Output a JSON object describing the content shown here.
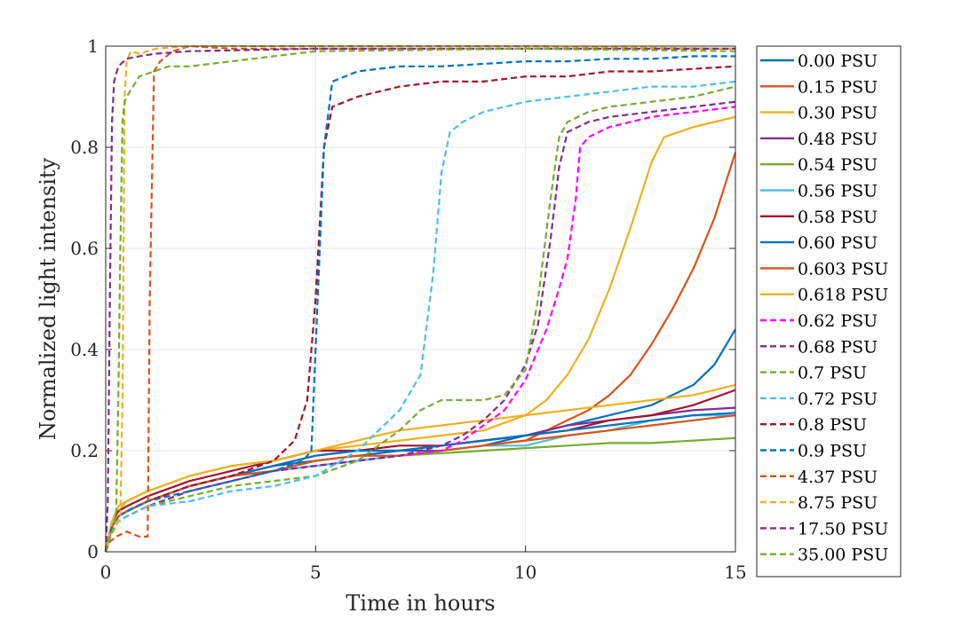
{
  "chart_data": {
    "type": "line",
    "xlabel": "Time in hours",
    "ylabel": "Normalized light intensity",
    "xlim": [
      0,
      15
    ],
    "ylim": [
      0,
      1
    ],
    "xticks": [
      "0",
      "5",
      "10",
      "15"
    ],
    "yticks": [
      "0",
      "0.2",
      "0.4",
      "0.6",
      "0.8",
      "1"
    ],
    "grid": true,
    "legend_position": "outside-right",
    "series": [
      {
        "name": "0.00 PSU",
        "color": "#0072BD",
        "dash": "solid",
        "x": [
          0,
          0.15,
          0.3,
          0.5,
          1,
          2,
          3,
          4,
          5,
          6,
          7,
          8,
          9,
          10,
          11,
          12,
          13,
          13.5,
          14,
          14.5,
          15
        ],
        "y": [
          0,
          0.05,
          0.07,
          0.08,
          0.1,
          0.13,
          0.15,
          0.17,
          0.18,
          0.19,
          0.2,
          0.2,
          0.21,
          0.23,
          0.25,
          0.27,
          0.29,
          0.31,
          0.33,
          0.37,
          0.44
        ]
      },
      {
        "name": "0.15 PSU",
        "color": "#D95319",
        "dash": "solid",
        "x": [
          0,
          0.15,
          0.3,
          0.5,
          1,
          2,
          3,
          4,
          5,
          6,
          7,
          8,
          9,
          10,
          11,
          11.5,
          12,
          12.5,
          13,
          13.5,
          14,
          14.5,
          15
        ],
        "y": [
          0,
          0.05,
          0.07,
          0.08,
          0.1,
          0.13,
          0.15,
          0.16,
          0.18,
          0.19,
          0.19,
          0.2,
          0.21,
          0.22,
          0.26,
          0.28,
          0.31,
          0.35,
          0.41,
          0.48,
          0.56,
          0.66,
          0.79
        ]
      },
      {
        "name": "0.30 PSU",
        "color": "#EDB120",
        "dash": "solid",
        "x": [
          0,
          0.15,
          0.3,
          0.5,
          1,
          2,
          3,
          4,
          5,
          6,
          7,
          8,
          9,
          10,
          10.5,
          11,
          11.5,
          12,
          12.5,
          13,
          13.3,
          14,
          14.5,
          15
        ],
        "y": [
          0,
          0.06,
          0.08,
          0.1,
          0.12,
          0.15,
          0.17,
          0.18,
          0.2,
          0.21,
          0.22,
          0.23,
          0.24,
          0.27,
          0.3,
          0.35,
          0.42,
          0.52,
          0.64,
          0.77,
          0.82,
          0.84,
          0.85,
          0.86
        ]
      },
      {
        "name": "0.48 PSU",
        "color": "#7E2F8E",
        "dash": "solid",
        "x": [
          0,
          0.15,
          0.3,
          0.5,
          1,
          2,
          3,
          4,
          5,
          6,
          7,
          8,
          9,
          10,
          11,
          12,
          13,
          14,
          15
        ],
        "y": [
          0,
          0.05,
          0.07,
          0.08,
          0.1,
          0.13,
          0.15,
          0.17,
          0.19,
          0.2,
          0.2,
          0.21,
          0.22,
          0.23,
          0.25,
          0.26,
          0.27,
          0.28,
          0.285
        ]
      },
      {
        "name": "0.54 PSU",
        "color": "#77AC30",
        "dash": "solid",
        "x": [
          0,
          0.15,
          0.3,
          0.5,
          1,
          2,
          3,
          4,
          5,
          6,
          7,
          8,
          9,
          10,
          11,
          12,
          13,
          14,
          15
        ],
        "y": [
          0,
          0.05,
          0.07,
          0.08,
          0.1,
          0.13,
          0.15,
          0.16,
          0.17,
          0.18,
          0.19,
          0.195,
          0.2,
          0.205,
          0.21,
          0.215,
          0.215,
          0.22,
          0.225
        ]
      },
      {
        "name": "0.56 PSU",
        "color": "#4DBEEE",
        "dash": "solid",
        "x": [
          0,
          0.15,
          0.3,
          0.5,
          1,
          2,
          3,
          4,
          5,
          6,
          7,
          8,
          9,
          10,
          11,
          12,
          13,
          14,
          15
        ],
        "y": [
          0,
          0.05,
          0.07,
          0.08,
          0.1,
          0.13,
          0.15,
          0.16,
          0.17,
          0.18,
          0.19,
          0.2,
          0.21,
          0.21,
          0.23,
          0.24,
          0.26,
          0.27,
          0.27
        ]
      },
      {
        "name": "0.58 PSU",
        "color": "#A2142F",
        "dash": "solid",
        "x": [
          0,
          0.15,
          0.3,
          0.5,
          1,
          2,
          3,
          4,
          5,
          6,
          7,
          8,
          9,
          10,
          11,
          12,
          13,
          14,
          15
        ],
        "y": [
          0,
          0.06,
          0.08,
          0.09,
          0.11,
          0.14,
          0.16,
          0.18,
          0.2,
          0.2,
          0.21,
          0.21,
          0.22,
          0.23,
          0.24,
          0.26,
          0.27,
          0.29,
          0.32
        ]
      },
      {
        "name": "0.60 PSU",
        "color": "#0072BD",
        "dash": "solid",
        "x": [
          0,
          0.15,
          0.3,
          0.5,
          1,
          2,
          3,
          4,
          5,
          6,
          7,
          8,
          9,
          10,
          11,
          12,
          13,
          14,
          15
        ],
        "y": [
          0,
          0.05,
          0.07,
          0.08,
          0.1,
          0.13,
          0.15,
          0.17,
          0.19,
          0.2,
          0.2,
          0.21,
          0.22,
          0.23,
          0.24,
          0.25,
          0.26,
          0.27,
          0.275
        ]
      },
      {
        "name": "0.603 PSU",
        "color": "#D95319",
        "dash": "solid",
        "x": [
          0,
          0.15,
          0.3,
          0.5,
          1,
          2,
          3,
          4,
          5,
          6,
          7,
          8,
          9,
          10,
          11,
          12,
          13,
          14,
          15
        ],
        "y": [
          0,
          0.05,
          0.07,
          0.08,
          0.1,
          0.13,
          0.15,
          0.16,
          0.18,
          0.19,
          0.19,
          0.2,
          0.21,
          0.22,
          0.23,
          0.24,
          0.25,
          0.26,
          0.27
        ]
      },
      {
        "name": "0.618 PSU",
        "color": "#EDB120",
        "dash": "solid",
        "x": [
          0,
          0.15,
          0.3,
          0.5,
          1,
          2,
          3,
          4,
          5,
          6,
          7,
          8,
          9,
          10,
          11,
          12,
          13,
          14,
          15
        ],
        "y": [
          0,
          0.06,
          0.09,
          0.1,
          0.12,
          0.15,
          0.17,
          0.18,
          0.2,
          0.22,
          0.24,
          0.25,
          0.26,
          0.27,
          0.28,
          0.29,
          0.3,
          0.31,
          0.33
        ]
      },
      {
        "name": "0.62 PSU",
        "color": "#FF00FF",
        "dash": "dash",
        "x": [
          0,
          0.15,
          0.3,
          0.5,
          1,
          2,
          3,
          4,
          5,
          6,
          7,
          8,
          8.5,
          9,
          9.5,
          10,
          10.5,
          10.8,
          11,
          11.2,
          11.3,
          11.5,
          12,
          13,
          14,
          15
        ],
        "y": [
          0,
          0.04,
          0.06,
          0.07,
          0.09,
          0.12,
          0.14,
          0.16,
          0.17,
          0.18,
          0.19,
          0.2,
          0.22,
          0.25,
          0.28,
          0.34,
          0.44,
          0.52,
          0.58,
          0.7,
          0.8,
          0.82,
          0.84,
          0.86,
          0.87,
          0.88
        ]
      },
      {
        "name": "0.68 PSU",
        "color": "#7E2F8E",
        "dash": "dash",
        "x": [
          0,
          0.15,
          0.3,
          0.5,
          1,
          2,
          3,
          4,
          5,
          6,
          7,
          8,
          8.5,
          9,
          9.5,
          10,
          10.3,
          10.6,
          10.8,
          11,
          11.5,
          12,
          13,
          14,
          15
        ],
        "y": [
          0,
          0.04,
          0.06,
          0.07,
          0.09,
          0.12,
          0.14,
          0.16,
          0.17,
          0.18,
          0.19,
          0.21,
          0.23,
          0.26,
          0.3,
          0.37,
          0.45,
          0.62,
          0.76,
          0.83,
          0.85,
          0.86,
          0.87,
          0.88,
          0.89
        ]
      },
      {
        "name": "0.7 PSU",
        "color": "#77AC30",
        "dash": "dash",
        "x": [
          0,
          0.15,
          0.3,
          0.5,
          1,
          2,
          3,
          4,
          5,
          6,
          7,
          7.5,
          8,
          8.5,
          9,
          9.5,
          10,
          10.3,
          10.6,
          10.8,
          11,
          11.5,
          12,
          13,
          14,
          15
        ],
        "y": [
          0,
          0.04,
          0.06,
          0.07,
          0.09,
          0.11,
          0.13,
          0.14,
          0.15,
          0.18,
          0.24,
          0.28,
          0.3,
          0.3,
          0.3,
          0.31,
          0.36,
          0.5,
          0.7,
          0.82,
          0.85,
          0.87,
          0.88,
          0.89,
          0.9,
          0.92
        ]
      },
      {
        "name": "0.72 PSU",
        "color": "#4DBEEE",
        "dash": "dash",
        "x": [
          0,
          0.15,
          0.3,
          0.5,
          1,
          2,
          3,
          4,
          5,
          6,
          6.5,
          7,
          7.5,
          7.8,
          8,
          8.2,
          8.5,
          9,
          10,
          11,
          12,
          13,
          14,
          15
        ],
        "y": [
          0,
          0.04,
          0.06,
          0.07,
          0.09,
          0.1,
          0.12,
          0.13,
          0.15,
          0.2,
          0.24,
          0.28,
          0.35,
          0.55,
          0.75,
          0.83,
          0.85,
          0.87,
          0.89,
          0.9,
          0.91,
          0.92,
          0.92,
          0.93
        ]
      },
      {
        "name": "0.8 PSU",
        "color": "#A2142F",
        "dash": "dash",
        "x": [
          0,
          0.15,
          0.3,
          0.5,
          1,
          2,
          3,
          4,
          4.5,
          4.8,
          5,
          5.2,
          5.4,
          6,
          7,
          8,
          9,
          10,
          11,
          12,
          13,
          14,
          15
        ],
        "y": [
          0,
          0.05,
          0.07,
          0.08,
          0.1,
          0.13,
          0.15,
          0.18,
          0.22,
          0.3,
          0.5,
          0.8,
          0.88,
          0.9,
          0.92,
          0.93,
          0.93,
          0.94,
          0.94,
          0.95,
          0.95,
          0.955,
          0.96
        ]
      },
      {
        "name": "0.9 PSU",
        "color": "#0072BD",
        "dash": "dash",
        "x": [
          0,
          0.15,
          0.3,
          0.5,
          1,
          2,
          3,
          4,
          4.7,
          4.9,
          5,
          5.2,
          5.4,
          6,
          7,
          8,
          9,
          10,
          11,
          12,
          13,
          14,
          15
        ],
        "y": [
          0,
          0.05,
          0.07,
          0.08,
          0.1,
          0.12,
          0.14,
          0.16,
          0.18,
          0.2,
          0.4,
          0.8,
          0.93,
          0.95,
          0.96,
          0.96,
          0.965,
          0.97,
          0.97,
          0.975,
          0.975,
          0.98,
          0.98
        ]
      },
      {
        "name": "4.37 PSU",
        "color": "#D95319",
        "dash": "dash",
        "x": [
          0,
          0.1,
          0.25,
          0.5,
          0.8,
          1.0,
          1.05,
          1.15,
          1.3,
          1.6,
          2,
          3,
          5,
          10,
          15
        ],
        "y": [
          0,
          0.02,
          0.03,
          0.04,
          0.03,
          0.03,
          0.5,
          0.95,
          0.97,
          0.99,
          1.0,
          0.995,
          0.995,
          0.995,
          0.995
        ]
      },
      {
        "name": "8.75 PSU",
        "color": "#EDB120",
        "dash": "dash",
        "x": [
          0,
          0.1,
          0.25,
          0.35,
          0.4,
          0.45,
          0.5,
          0.6,
          0.8,
          1.2,
          2,
          5,
          10,
          15
        ],
        "y": [
          0,
          0.03,
          0.05,
          0.07,
          0.3,
          0.9,
          0.97,
          0.99,
          0.985,
          0.995,
          1.0,
          1.0,
          1.0,
          0.995
        ]
      },
      {
        "name": "17.50 PSU",
        "color": "#7E2F8E",
        "dash": "dash",
        "x": [
          0,
          0.05,
          0.1,
          0.15,
          0.2,
          0.3,
          0.5,
          0.8,
          1.2,
          2,
          5,
          10,
          15
        ],
        "y": [
          0,
          0.1,
          0.5,
          0.85,
          0.93,
          0.96,
          0.975,
          0.98,
          0.985,
          0.99,
          0.995,
          0.995,
          0.995
        ]
      },
      {
        "name": "35.00 PSU",
        "color": "#77AC30",
        "dash": "dash",
        "x": [
          0,
          0.1,
          0.2,
          0.25,
          0.3,
          0.35,
          0.4,
          0.45,
          0.5,
          0.8,
          1.5,
          2,
          3,
          5,
          10,
          15
        ],
        "y": [
          0,
          0.03,
          0.05,
          0.08,
          0.3,
          0.6,
          0.85,
          0.89,
          0.9,
          0.94,
          0.96,
          0.96,
          0.97,
          0.99,
          0.995,
          0.99
        ]
      }
    ]
  }
}
